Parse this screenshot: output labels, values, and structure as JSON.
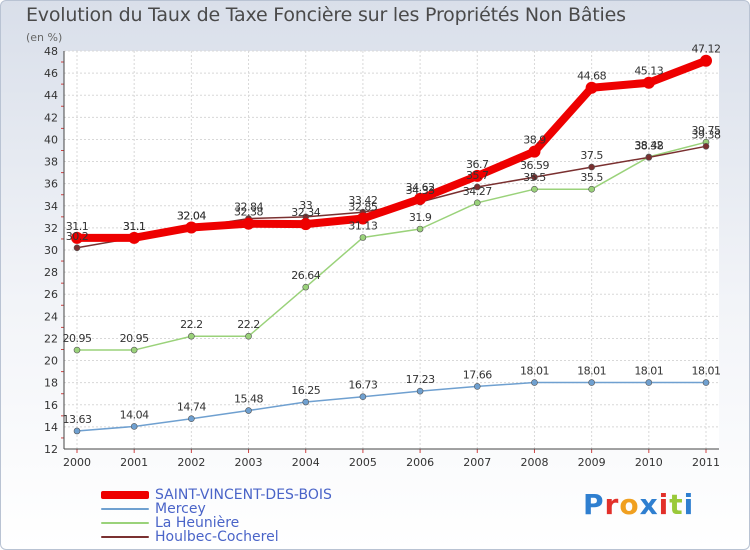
{
  "title": "Evolution du Taux de Taxe Foncière sur les Propriétés Non Bâties",
  "unit_label": "(en %)",
  "logo_text": "Proxiti",
  "chart_data": {
    "type": "line",
    "title": "Evolution du Taux de Taxe Foncière sur les Propriétés Non Bâties",
    "ylabel": "(en %)",
    "xlabel": "",
    "ylim": [
      12,
      48
    ],
    "ytick_step": 2,
    "grid": true,
    "legend_position": "bottom-left",
    "x": [
      "2000",
      "2001",
      "2002",
      "2003",
      "2004",
      "2005",
      "2006",
      "2007",
      "2008",
      "2009",
      "2010",
      "2011"
    ],
    "series": [
      {
        "name": "SAINT-VINCENT-DES-BOIS",
        "color": "#ee0000",
        "values": [
          31.1,
          31.1,
          32.04,
          32.38,
          32.34,
          32.85,
          34.62,
          36.7,
          38.9,
          44.68,
          45.13,
          47.12
        ],
        "labels": [
          "31.1",
          "31.1",
          "32.04",
          "32.38",
          "32.34",
          "32.85",
          "34.62",
          "36.7",
          "38.9",
          "44.68",
          "45.13",
          "47.12"
        ]
      },
      {
        "name": "Mercey",
        "color": "#6fa0d0",
        "values": [
          13.63,
          14.04,
          14.74,
          15.48,
          16.25,
          16.73,
          17.23,
          17.66,
          18.01,
          18.01,
          18.01,
          18.01
        ],
        "labels": [
          "13.63",
          "14.04",
          "14.74",
          "15.48",
          "16.25",
          "16.73",
          "17.23",
          "17.66",
          "18.01",
          "18.01",
          "18.01",
          "18.01"
        ]
      },
      {
        "name": "La Heunière",
        "color": "#9ad27a",
        "values": [
          20.95,
          20.95,
          22.2,
          22.2,
          26.64,
          31.13,
          31.9,
          34.27,
          35.5,
          35.5,
          38.42,
          39.75
        ],
        "labels": [
          "20.95",
          "20.95",
          "22.2",
          "22.2",
          "26.64",
          "31.13",
          "31.9",
          "34.27",
          "35.5",
          "35.5",
          "38.42",
          "39.75"
        ]
      },
      {
        "name": "Houlbec-Cocherel",
        "color": "#7a3030",
        "values": [
          30.2,
          31.1,
          32.04,
          32.84,
          33.0,
          33.42,
          34.33,
          35.7,
          36.59,
          37.5,
          38.38,
          39.38
        ],
        "labels": [
          "30.2",
          "31.1",
          "32.04",
          "32.84",
          "33",
          "33.42",
          "34.33",
          "35.7",
          "36.59",
          "37.5",
          "38.38",
          "39.38"
        ]
      }
    ]
  }
}
